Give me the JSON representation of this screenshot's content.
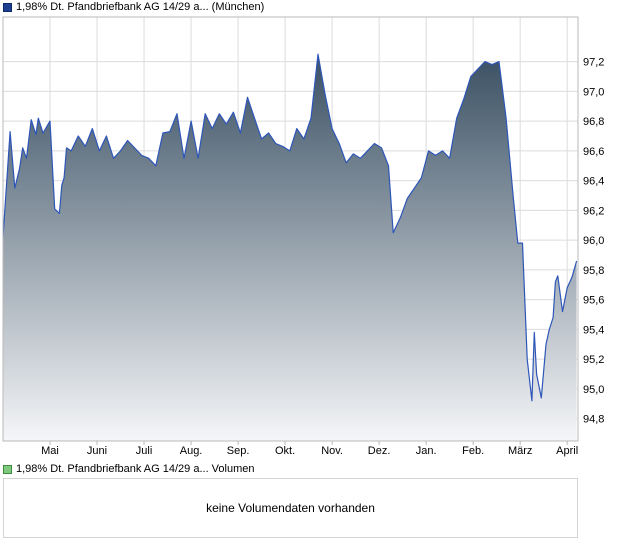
{
  "price_legend": {
    "label": "1,98% Dt. Pfandbriefbank AG 14/29 a... (München)",
    "color": "#1f3f8f"
  },
  "volume_legend": {
    "label": "1,98% Dt. Pfandbriefbank AG 14/29 a... Volumen",
    "color": "#7fc97f"
  },
  "volume_panel": {
    "message": "keine Volumendaten vorhanden"
  },
  "chart_data": {
    "type": "area",
    "y_axis_position": "right",
    "ylim": [
      94.65,
      97.5
    ],
    "y_ticks": [
      {
        "value": 94.8,
        "label": "94,8"
      },
      {
        "value": 95.0,
        "label": "95,0"
      },
      {
        "value": 95.2,
        "label": "95,2"
      },
      {
        "value": 95.4,
        "label": "95,4"
      },
      {
        "value": 95.6,
        "label": "95,6"
      },
      {
        "value": 95.8,
        "label": "95,8"
      },
      {
        "value": 96.0,
        "label": "96,0"
      },
      {
        "value": 96.2,
        "label": "96,2"
      },
      {
        "value": 96.4,
        "label": "96,4"
      },
      {
        "value": 96.6,
        "label": "96,6"
      },
      {
        "value": 96.8,
        "label": "96,8"
      },
      {
        "value": 97.0,
        "label": "97,0"
      },
      {
        "value": 97.2,
        "label": "97,2"
      }
    ],
    "x_range": [
      0,
      12.23
    ],
    "x_ticks": [
      {
        "value": 1,
        "label": "Mai"
      },
      {
        "value": 2,
        "label": "Juni"
      },
      {
        "value": 3,
        "label": "Juli"
      },
      {
        "value": 4,
        "label": "Aug."
      },
      {
        "value": 5,
        "label": "Sep."
      },
      {
        "value": 6,
        "label": "Okt."
      },
      {
        "value": 7,
        "label": "Nov."
      },
      {
        "value": 8,
        "label": "Dez."
      },
      {
        "value": 9,
        "label": "Jan."
      },
      {
        "value": 10,
        "label": "Feb."
      },
      {
        "value": 11,
        "label": "März"
      },
      {
        "value": 12,
        "label": "April"
      }
    ],
    "grid": true,
    "line_color": "#2e56b8",
    "fill_top_color": "#3a5063",
    "fill_bottom_color": "#f5f6f8",
    "series": [
      {
        "x": [
          0,
          0.06,
          0.15,
          0.25,
          0.35,
          0.42,
          0.5,
          0.6,
          0.7,
          0.75,
          0.85,
          1.0,
          1.1,
          1.2,
          1.25,
          1.3,
          1.35,
          1.45,
          1.6,
          1.75,
          1.9,
          2.05,
          2.2,
          2.35,
          2.5,
          2.65,
          2.8,
          2.95,
          3.1,
          3.25,
          3.4,
          3.55,
          3.7,
          3.85,
          4.0,
          4.15,
          4.3,
          4.45,
          4.6,
          4.75,
          4.9,
          5.05,
          5.2,
          5.35,
          5.5,
          5.65,
          5.8,
          5.95,
          6.1,
          6.25,
          6.4,
          6.55,
          6.7,
          6.85,
          7.0,
          7.15,
          7.3,
          7.45,
          7.6,
          7.75,
          7.9,
          8.05,
          8.2,
          8.3,
          8.45,
          8.6,
          8.75,
          8.9,
          9.05,
          9.2,
          9.35,
          9.5,
          9.65,
          9.8,
          9.95,
          10.1,
          10.25,
          10.4,
          10.55,
          10.7,
          10.85,
          10.95,
          11.05,
          11.15,
          11.25,
          11.3,
          11.35,
          11.45,
          11.55,
          11.62,
          11.7,
          11.75,
          11.8,
          11.9,
          12.0,
          12.1,
          12.2
        ],
        "values": [
          96.02,
          96.3,
          96.73,
          96.35,
          96.48,
          96.62,
          96.55,
          96.81,
          96.71,
          96.82,
          96.72,
          96.8,
          96.21,
          96.18,
          96.37,
          96.42,
          96.62,
          96.6,
          96.7,
          96.63,
          96.75,
          96.6,
          96.7,
          96.55,
          96.6,
          96.67,
          96.62,
          96.57,
          96.55,
          96.5,
          96.72,
          96.73,
          96.85,
          96.55,
          96.8,
          96.55,
          96.85,
          96.75,
          96.85,
          96.78,
          96.86,
          96.72,
          96.96,
          96.82,
          96.68,
          96.72,
          96.65,
          96.63,
          96.6,
          96.75,
          96.68,
          96.82,
          97.25,
          96.98,
          96.75,
          96.65,
          96.52,
          96.58,
          96.55,
          96.6,
          96.65,
          96.62,
          96.5,
          96.05,
          96.15,
          96.28,
          96.35,
          96.42,
          96.6,
          96.57,
          96.6,
          96.55,
          96.82,
          96.95,
          97.1,
          97.15,
          97.2,
          97.18,
          97.2,
          96.82,
          96.3,
          95.98,
          95.98,
          95.2,
          94.92,
          95.38,
          95.1,
          94.94,
          95.3,
          95.4,
          95.48,
          95.72,
          95.76,
          95.52,
          95.68,
          95.75,
          95.86
        ]
      }
    ]
  }
}
